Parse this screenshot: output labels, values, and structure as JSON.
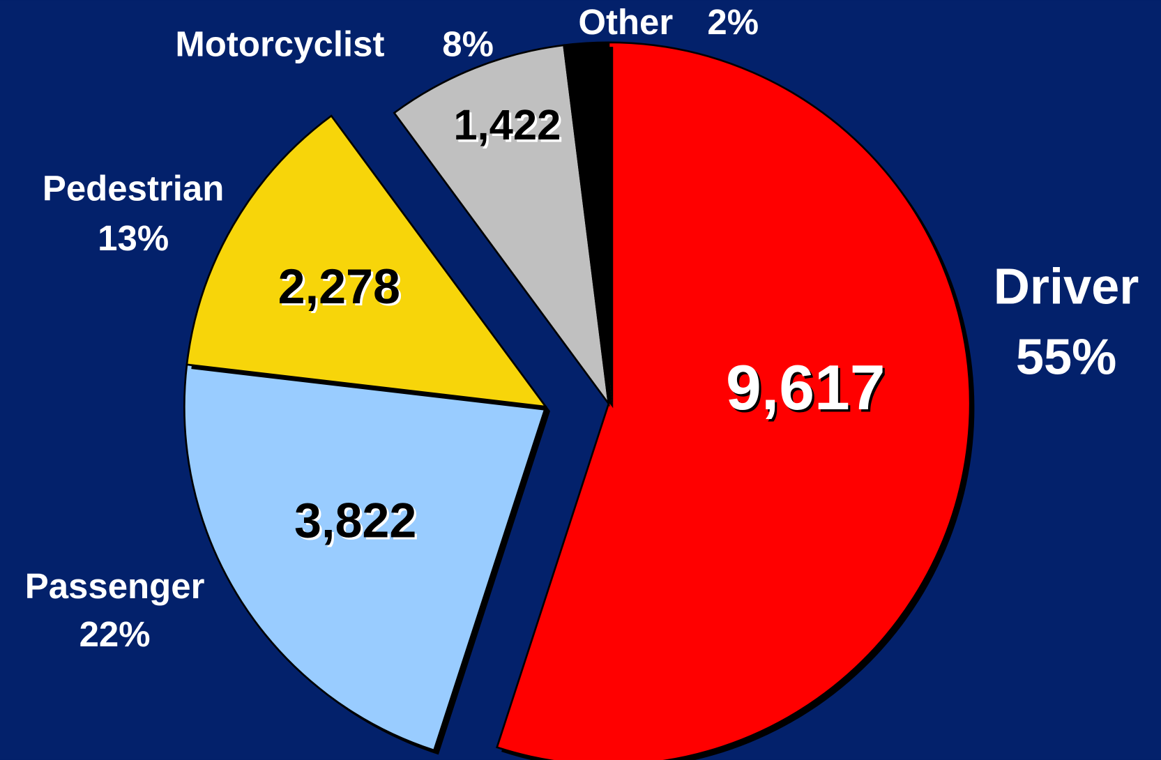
{
  "chart_data": {
    "type": "pie",
    "categories": [
      "Driver",
      "Passenger",
      "Pedestrian",
      "Motorcyclist",
      "Other"
    ],
    "values": [
      9617,
      3822,
      2278,
      1422,
      346
    ],
    "value_labels": [
      "9,617",
      "3,822",
      "2,278",
      "1,422",
      null
    ],
    "percent_labels": [
      "55%",
      "22%",
      "13%",
      "8%",
      "2%"
    ],
    "colors": [
      "#ff0000",
      "#99ccff",
      "#f7d50a",
      "#c0c0c0",
      "#000000"
    ],
    "start_angle": 90,
    "direction": "clockwise"
  }
}
